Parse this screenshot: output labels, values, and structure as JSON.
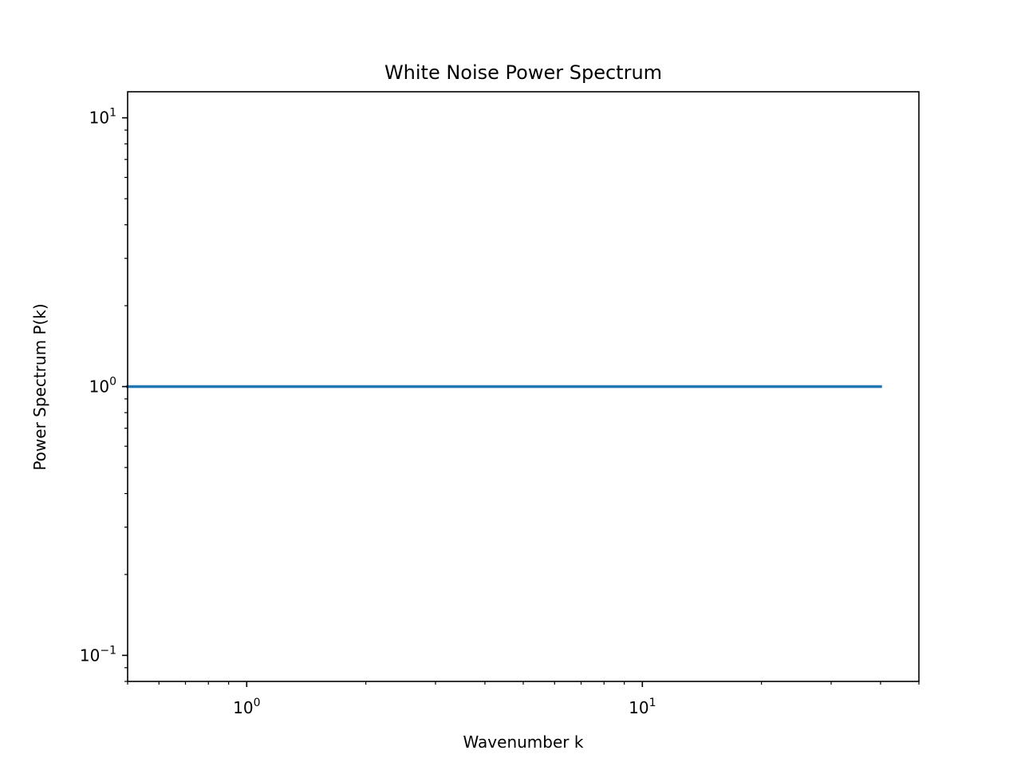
{
  "chart_data": {
    "type": "line",
    "title": "White Noise Power Spectrum",
    "xlabel": "Wavenumber k",
    "ylabel": "Power Spectrum P(k)",
    "xscale": "log",
    "yscale": "log",
    "xlim": [
      0.5,
      50
    ],
    "ylim": [
      0.08,
      12.5
    ],
    "grid": false,
    "x_major_ticks": [
      {
        "value": 1,
        "base": "10",
        "exp": "0"
      },
      {
        "value": 10,
        "base": "10",
        "exp": "1"
      }
    ],
    "y_major_ticks": [
      {
        "value": 0.1,
        "base": "10",
        "exp": "−1"
      },
      {
        "value": 1,
        "base": "10",
        "exp": "0"
      },
      {
        "value": 10,
        "base": "10",
        "exp": "1"
      }
    ],
    "series": [
      {
        "color": "#1f77b4",
        "x": [
          0.5,
          40
        ],
        "y": [
          1,
          1
        ]
      }
    ]
  }
}
